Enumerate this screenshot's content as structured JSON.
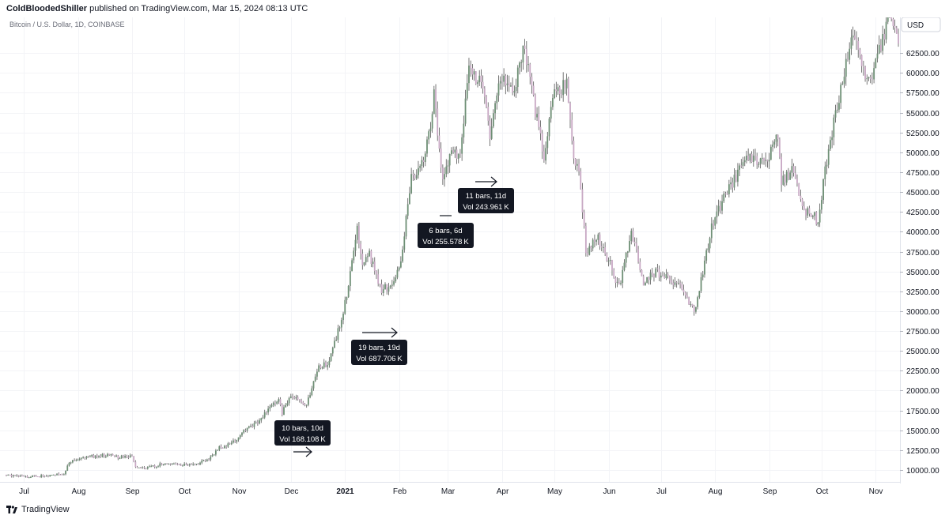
{
  "header": {
    "author": "ColdBloodedShiller",
    "published": " published on TradingView.com, Mar 15, 2024 08:13 UTC"
  },
  "footer": {
    "brand": "TradingView"
  },
  "chart_data": {
    "type": "candlestick",
    "symbol": "Bitcoin / U.S. Dollar, 1D, COINBASE",
    "currency": "USD",
    "colors": {
      "up": "#6e8f75",
      "down": "#c8a8c4",
      "wick": "#555555"
    },
    "ylim": [
      8500,
      67000
    ],
    "y_ticks": [
      10000,
      12500,
      15000,
      17500,
      20000,
      22500,
      25000,
      27500,
      30000,
      32500,
      35000,
      37500,
      40000,
      42500,
      45000,
      47500,
      50000,
      52500,
      55000,
      57500,
      60000,
      62500
    ],
    "y_tick_labels": [
      "10000.00",
      "12500.00",
      "15000.00",
      "17500.00",
      "20000.00",
      "22500.00",
      "25000.00",
      "27500.00",
      "30000.00",
      "32500.00",
      "35000.00",
      "37500.00",
      "40000.00",
      "42500.00",
      "45000.00",
      "47500.00",
      "50000.00",
      "52500.00",
      "55000.00",
      "57500.00",
      "60000.00",
      "62500.00"
    ],
    "x_range": [
      "2020-06-21",
      "2021-11-14"
    ],
    "x_ticks": [
      {
        "date": "2020-07-01",
        "label": "Jul"
      },
      {
        "date": "2020-08-01",
        "label": "Aug"
      },
      {
        "date": "2020-09-01",
        "label": "Sep"
      },
      {
        "date": "2020-10-01",
        "label": "Oct"
      },
      {
        "date": "2020-11-01",
        "label": "Nov"
      },
      {
        "date": "2020-12-01",
        "label": "Dec"
      },
      {
        "date": "2021-01-01",
        "label": "2021",
        "bold": true
      },
      {
        "date": "2021-02-01",
        "label": "Feb"
      },
      {
        "date": "2021-03-01",
        "label": "Mar"
      },
      {
        "date": "2021-04-01",
        "label": "Apr"
      },
      {
        "date": "2021-05-01",
        "label": "May"
      },
      {
        "date": "2021-06-01",
        "label": "Jun"
      },
      {
        "date": "2021-07-01",
        "label": "Jul"
      },
      {
        "date": "2021-08-01",
        "label": "Aug"
      },
      {
        "date": "2021-09-01",
        "label": "Sep"
      },
      {
        "date": "2021-10-01",
        "label": "Oct"
      },
      {
        "date": "2021-11-01",
        "label": "Nov"
      }
    ],
    "price_path": [
      [
        "2020-06-21",
        9400
      ],
      [
        "2020-06-28",
        9150
      ],
      [
        "2020-07-05",
        9200
      ],
      [
        "2020-07-12",
        9250
      ],
      [
        "2020-07-19",
        9300
      ],
      [
        "2020-07-24",
        9600
      ],
      [
        "2020-07-27",
        11000
      ],
      [
        "2020-08-02",
        11500
      ],
      [
        "2020-08-10",
        11700
      ],
      [
        "2020-08-17",
        11900
      ],
      [
        "2020-08-25",
        11600
      ],
      [
        "2020-09-01",
        11800
      ],
      [
        "2020-09-03",
        10300
      ],
      [
        "2020-09-10",
        10300
      ],
      [
        "2020-09-20",
        10800
      ],
      [
        "2020-10-01",
        10600
      ],
      [
        "2020-10-08",
        10700
      ],
      [
        "2020-10-15",
        11400
      ],
      [
        "2020-10-21",
        12800
      ],
      [
        "2020-10-28",
        13300
      ],
      [
        "2020-11-05",
        15000
      ],
      [
        "2020-11-12",
        16000
      ],
      [
        "2020-11-19",
        17900
      ],
      [
        "2020-11-24",
        19000
      ],
      [
        "2020-11-26",
        17200
      ],
      [
        "2020-12-01",
        19500
      ],
      [
        "2020-12-10",
        18300
      ],
      [
        "2020-12-17",
        22800
      ],
      [
        "2020-12-22",
        23500
      ],
      [
        "2020-12-27",
        26500
      ],
      [
        "2021-01-02",
        32000
      ],
      [
        "2021-01-08",
        40500
      ],
      [
        "2021-01-11",
        35500
      ],
      [
        "2021-01-15",
        37000
      ],
      [
        "2021-01-22",
        32500
      ],
      [
        "2021-01-28",
        33500
      ],
      [
        "2021-02-02",
        36500
      ],
      [
        "2021-02-08",
        46500
      ],
      [
        "2021-02-14",
        48500
      ],
      [
        "2021-02-18",
        52000
      ],
      [
        "2021-02-21",
        57500
      ],
      [
        "2021-02-26",
        46000
      ],
      [
        "2021-03-03",
        50000
      ],
      [
        "2021-03-08",
        50000
      ],
      [
        "2021-03-13",
        60500
      ],
      [
        "2021-03-20",
        58500
      ],
      [
        "2021-03-25",
        52500
      ],
      [
        "2021-03-31",
        59000
      ],
      [
        "2021-04-08",
        58000
      ],
      [
        "2021-04-13",
        63500
      ],
      [
        "2021-04-17",
        60000
      ],
      [
        "2021-04-20",
        55000
      ],
      [
        "2021-04-25",
        49500
      ],
      [
        "2021-05-01",
        57500
      ],
      [
        "2021-05-08",
        58500
      ],
      [
        "2021-05-12",
        50000
      ],
      [
        "2021-05-16",
        46000
      ],
      [
        "2021-05-19",
        37500
      ],
      [
        "2021-05-26",
        39000
      ],
      [
        "2021-06-01",
        36500
      ],
      [
        "2021-06-07",
        33000
      ],
      [
        "2021-06-14",
        40000
      ],
      [
        "2021-06-21",
        33500
      ],
      [
        "2021-06-28",
        35000
      ],
      [
        "2021-07-06",
        34000
      ],
      [
        "2021-07-14",
        32500
      ],
      [
        "2021-07-20",
        30000
      ],
      [
        "2021-07-25",
        35000
      ],
      [
        "2021-07-31",
        41500
      ],
      [
        "2021-08-07",
        44500
      ],
      [
        "2021-08-14",
        47500
      ],
      [
        "2021-08-22",
        49500
      ],
      [
        "2021-08-29",
        48500
      ],
      [
        "2021-09-06",
        52000
      ],
      [
        "2021-09-08",
        46500
      ],
      [
        "2021-09-15",
        48000
      ],
      [
        "2021-09-21",
        42500
      ],
      [
        "2021-09-29",
        41500
      ],
      [
        "2021-10-04",
        49000
      ],
      [
        "2021-10-08",
        54000
      ],
      [
        "2021-10-15",
        61000
      ],
      [
        "2021-10-20",
        65000
      ],
      [
        "2021-10-27",
        58500
      ],
      [
        "2021-11-03",
        62500
      ],
      [
        "2021-11-09",
        67500
      ],
      [
        "2021-11-14",
        64000
      ]
    ],
    "annotations": [
      {
        "bars_text": "10 bars, 10d",
        "vol_text": "Vol 168.108 K"
      },
      {
        "bars_text": "19 bars, 19d",
        "vol_text": "Vol 687.706 K"
      },
      {
        "bars_text": "6 bars, 6d",
        "vol_text": "Vol 255.578 K"
      },
      {
        "bars_text": "11 bars, 11d",
        "vol_text": "Vol 243.961 K"
      }
    ]
  }
}
